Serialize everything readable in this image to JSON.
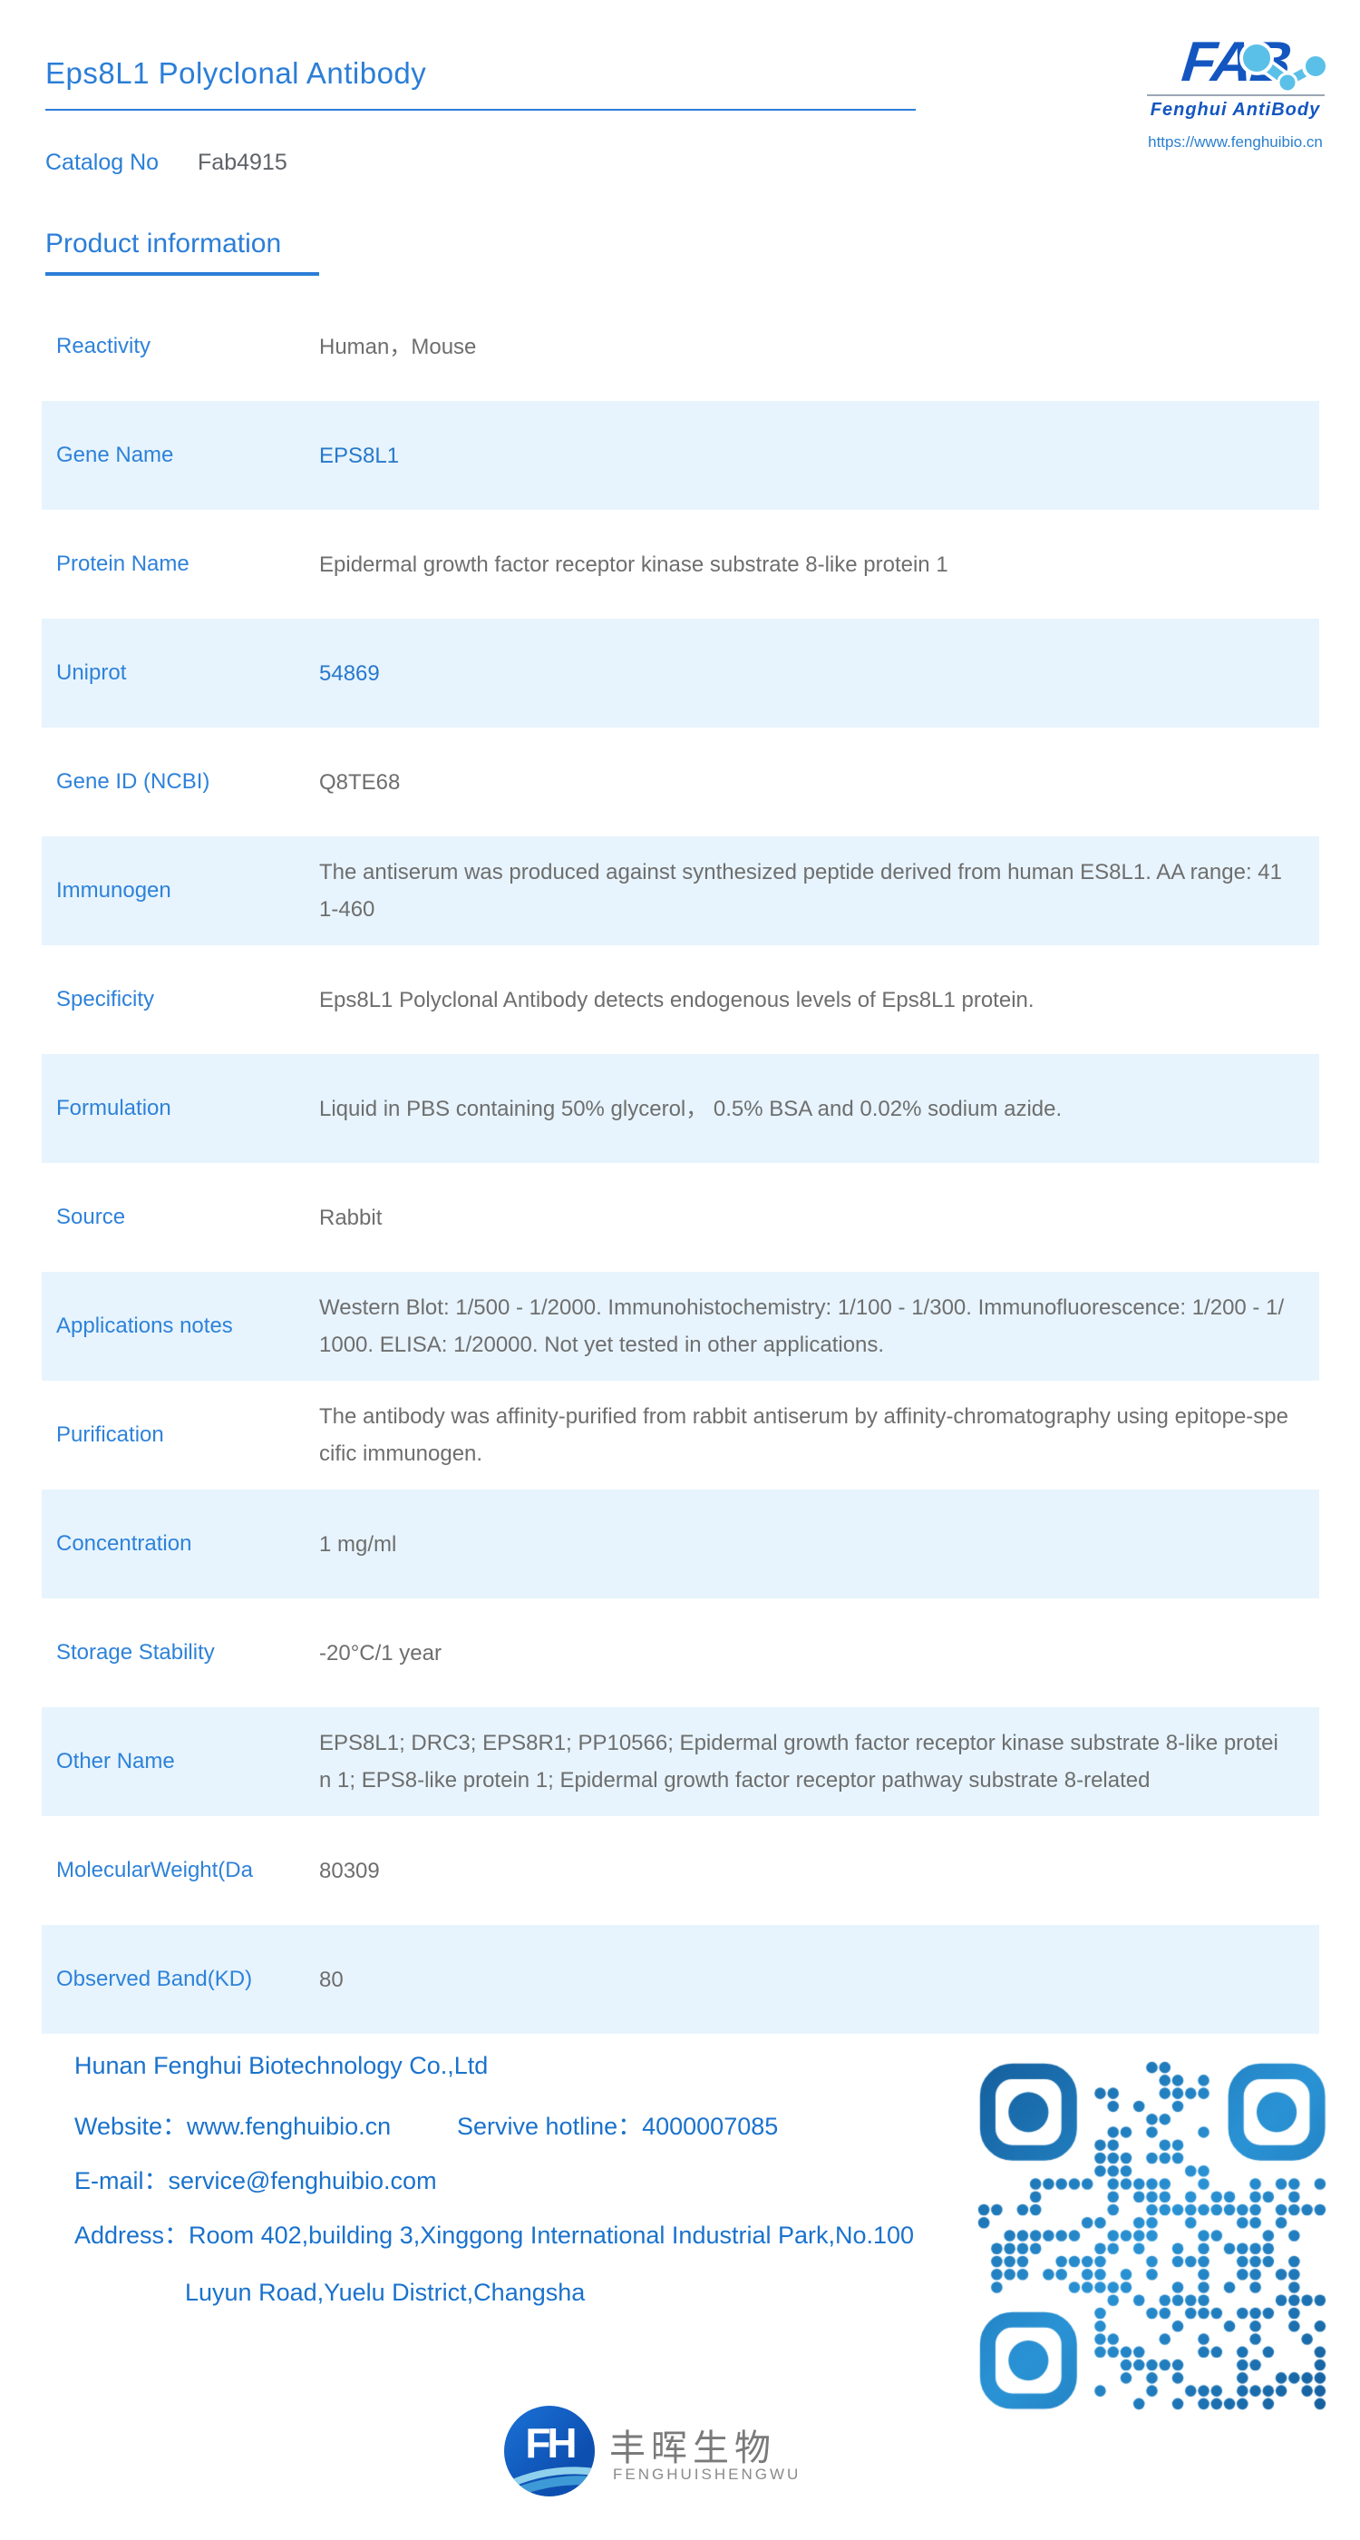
{
  "header": {
    "title": "Eps8L1 Polyclonal Antibody",
    "catalog_label": "Catalog No",
    "catalog_value": "Fab4915"
  },
  "logo": {
    "wordmark": "FAB",
    "brand": "Fenghui AntiBody",
    "url": "https://www.fenghuibio.cn"
  },
  "section": {
    "title": "Product information"
  },
  "table": {
    "rows": [
      {
        "label": "Reactivity",
        "value": "Human，Mouse"
      },
      {
        "label": "Gene Name",
        "value": "EPS8L1"
      },
      {
        "label": "Protein Name",
        "value": "Epidermal growth factor receptor kinase substrate 8-like protein 1"
      },
      {
        "label": "Uniprot",
        "value": "54869"
      },
      {
        "label": "Gene ID (NCBI)",
        "value": "Q8TE68"
      },
      {
        "label": "Immunogen",
        "value": "The antiserum was produced against synthesized peptide derived from human ES8L1. AA range: 411-460"
      },
      {
        "label": "Specificity",
        "value": "Eps8L1 Polyclonal Antibody detects endogenous levels of Eps8L1 protein."
      },
      {
        "label": "Formulation",
        "value": "Liquid in PBS containing 50% glycerol， 0.5% BSA and 0.02% sodium azide."
      },
      {
        "label": "Source",
        "value": "Rabbit"
      },
      {
        "label": "Applications notes",
        "value": "Western Blot: 1/500 - 1/2000. Immunohistochemistry: 1/100 - 1/300. Immunofluorescence: 1/200 - 1/1000. ELISA: 1/20000. Not yet tested in other applications."
      },
      {
        "label": "Purification",
        "value": "The antibody was affinity-purified from rabbit antiserum by affinity-chromatography using epitope-specific immunogen."
      },
      {
        "label": "Concentration",
        "value": "1 mg/ml"
      },
      {
        "label": "Storage Stability",
        "value": "-20°C/1 year"
      },
      {
        "label": "Other Name",
        "value": "EPS8L1; DRC3; EPS8R1; PP10566; Epidermal growth factor receptor kinase substrate 8-like protein 1; EPS8-like protein 1; Epidermal growth factor receptor pathway substrate 8-related"
      },
      {
        "label": "MolecularWeight(Da",
        "value": "80309"
      },
      {
        "label": "Observed Band(KD)",
        "value": "80"
      }
    ]
  },
  "footer": {
    "company": "Hunan Fenghui Biotechnology Co.,Ltd",
    "website_line": "Website：www.fenghuibio.cn",
    "hotline_line": "Servive hotline：4000007085",
    "email_line": "E-mail：service@fenghuibio.com",
    "address_line1": "Address：Room 402,building 3,Xinggong International Industrial Park,No.100",
    "address_line2": "Luyun Road,Yuelu District,Changsha"
  },
  "brandmark": {
    "glyph": "FH",
    "cn": "丰晖生物",
    "en": "FENGHUISHENGWU"
  },
  "colors": {
    "title_blue": "#2b7ed7",
    "label_blue": "#2e82d9",
    "link_blue": "#2878cc",
    "value_gray": "#6e6e6e",
    "row_alt_bg": "#e7f4fd",
    "footer_blue": "#1a72cc",
    "logo_blue": "#1356c0",
    "logo_light_blue": "#5bc0e8",
    "qr_blue": "#1b6cb5"
  }
}
